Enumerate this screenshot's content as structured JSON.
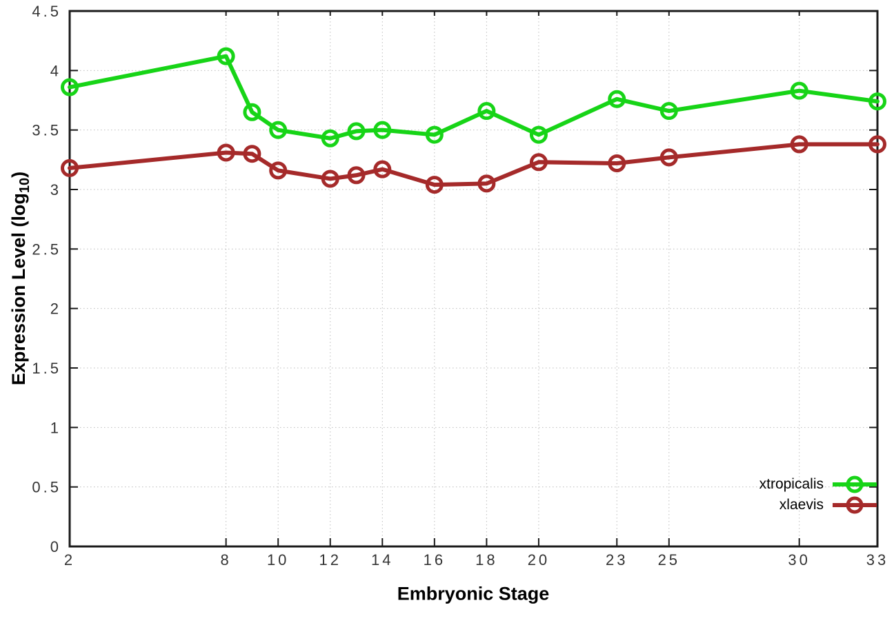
{
  "chart_data": {
    "type": "line",
    "title": "",
    "xlabel": "Embryonic Stage",
    "ylabel": "Expression Level (log10)",
    "xlim": [
      2,
      33
    ],
    "ylim": [
      0,
      4.5
    ],
    "grid": true,
    "grid_style": "dotted",
    "legend_position": "bottom-right-inside",
    "x": [
      2,
      8,
      9,
      10,
      12,
      13,
      14,
      16,
      18,
      20,
      23,
      25,
      30,
      33
    ],
    "x_ticks": [
      2,
      8,
      10,
      12,
      14,
      16,
      18,
      20,
      23,
      25,
      30,
      33
    ],
    "x_tick_labels": [
      "2",
      "8",
      "10",
      "12",
      "14",
      "16",
      "18",
      "20",
      "23",
      "25",
      "30",
      "33"
    ],
    "y_ticks": [
      0,
      0.5,
      1,
      1.5,
      2,
      2.5,
      3,
      3.5,
      4,
      4.5
    ],
    "y_tick_labels": [
      "0",
      "0.5",
      "1",
      "1.5",
      "2",
      "2.5",
      "3",
      "3.5",
      "4",
      "4.5"
    ],
    "series": [
      {
        "name": "xtropicalis",
        "color": "#17d417",
        "marker": "open-circle",
        "values": [
          3.86,
          4.12,
          3.65,
          3.5,
          3.43,
          3.49,
          3.5,
          3.46,
          3.66,
          3.46,
          3.76,
          3.66,
          3.83,
          3.74
        ]
      },
      {
        "name": "xlaevis",
        "color": "#a52a2a",
        "marker": "open-circle",
        "values": [
          3.18,
          3.31,
          3.3,
          3.16,
          3.09,
          3.12,
          3.17,
          3.04,
          3.05,
          3.23,
          3.22,
          3.27,
          3.38,
          3.38
        ]
      }
    ]
  },
  "axis_titles": {
    "x_title": "Embryonic Stage",
    "y_title_prefix": "Expression Level (log",
    "y_title_sub": "10",
    "y_title_suffix": ")"
  },
  "style_colors": {
    "axis_border": "#1a1a1a",
    "grid": "#bcbcbc",
    "tick_text": "#333333",
    "background": "#ffffff"
  }
}
